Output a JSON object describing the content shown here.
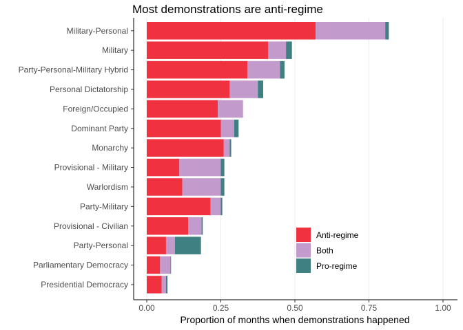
{
  "chart_data": {
    "type": "bar",
    "orientation": "horizontal",
    "stacked": true,
    "title": "Most demonstrations are anti-regime",
    "xlabel": "Proportion of months when demonstrations happened",
    "ylabel": "",
    "xlim": [
      0,
      1
    ],
    "xticks": [
      "0.00",
      "0.25",
      "0.50",
      "0.75",
      "1.00"
    ],
    "grid": "white major lines",
    "legend_position": "bottom-right inside",
    "categories": [
      "Military-Personal",
      "Military",
      "Party-Personal-Military Hybrid",
      "Personal Dictatorship",
      "Foreign/Occupied",
      "Dominant Party",
      "Monarchy",
      "Provisional - Military",
      "Warlordism",
      "Party-Military",
      "Provisional - Civilian",
      "Party-Personal",
      "Parliamentary Democracy",
      "Presidential Democracy"
    ],
    "series": [
      {
        "name": "Anti-regime",
        "color": "#f0313f",
        "values": [
          0.57,
          0.41,
          0.34,
          0.28,
          0.24,
          0.25,
          0.26,
          0.11,
          0.12,
          0.215,
          0.14,
          0.065,
          0.045,
          0.05
        ]
      },
      {
        "name": "Both",
        "color": "#c29acc",
        "values": [
          0.235,
          0.06,
          0.11,
          0.095,
          0.085,
          0.045,
          0.02,
          0.14,
          0.13,
          0.035,
          0.045,
          0.03,
          0.035,
          0.015
        ]
      },
      {
        "name": "Pro-regime",
        "color": "#3f8082",
        "values": [
          0.012,
          0.02,
          0.015,
          0.018,
          0.0,
          0.015,
          0.005,
          0.012,
          0.012,
          0.005,
          0.004,
          0.088,
          0.002,
          0.005
        ]
      }
    ]
  }
}
